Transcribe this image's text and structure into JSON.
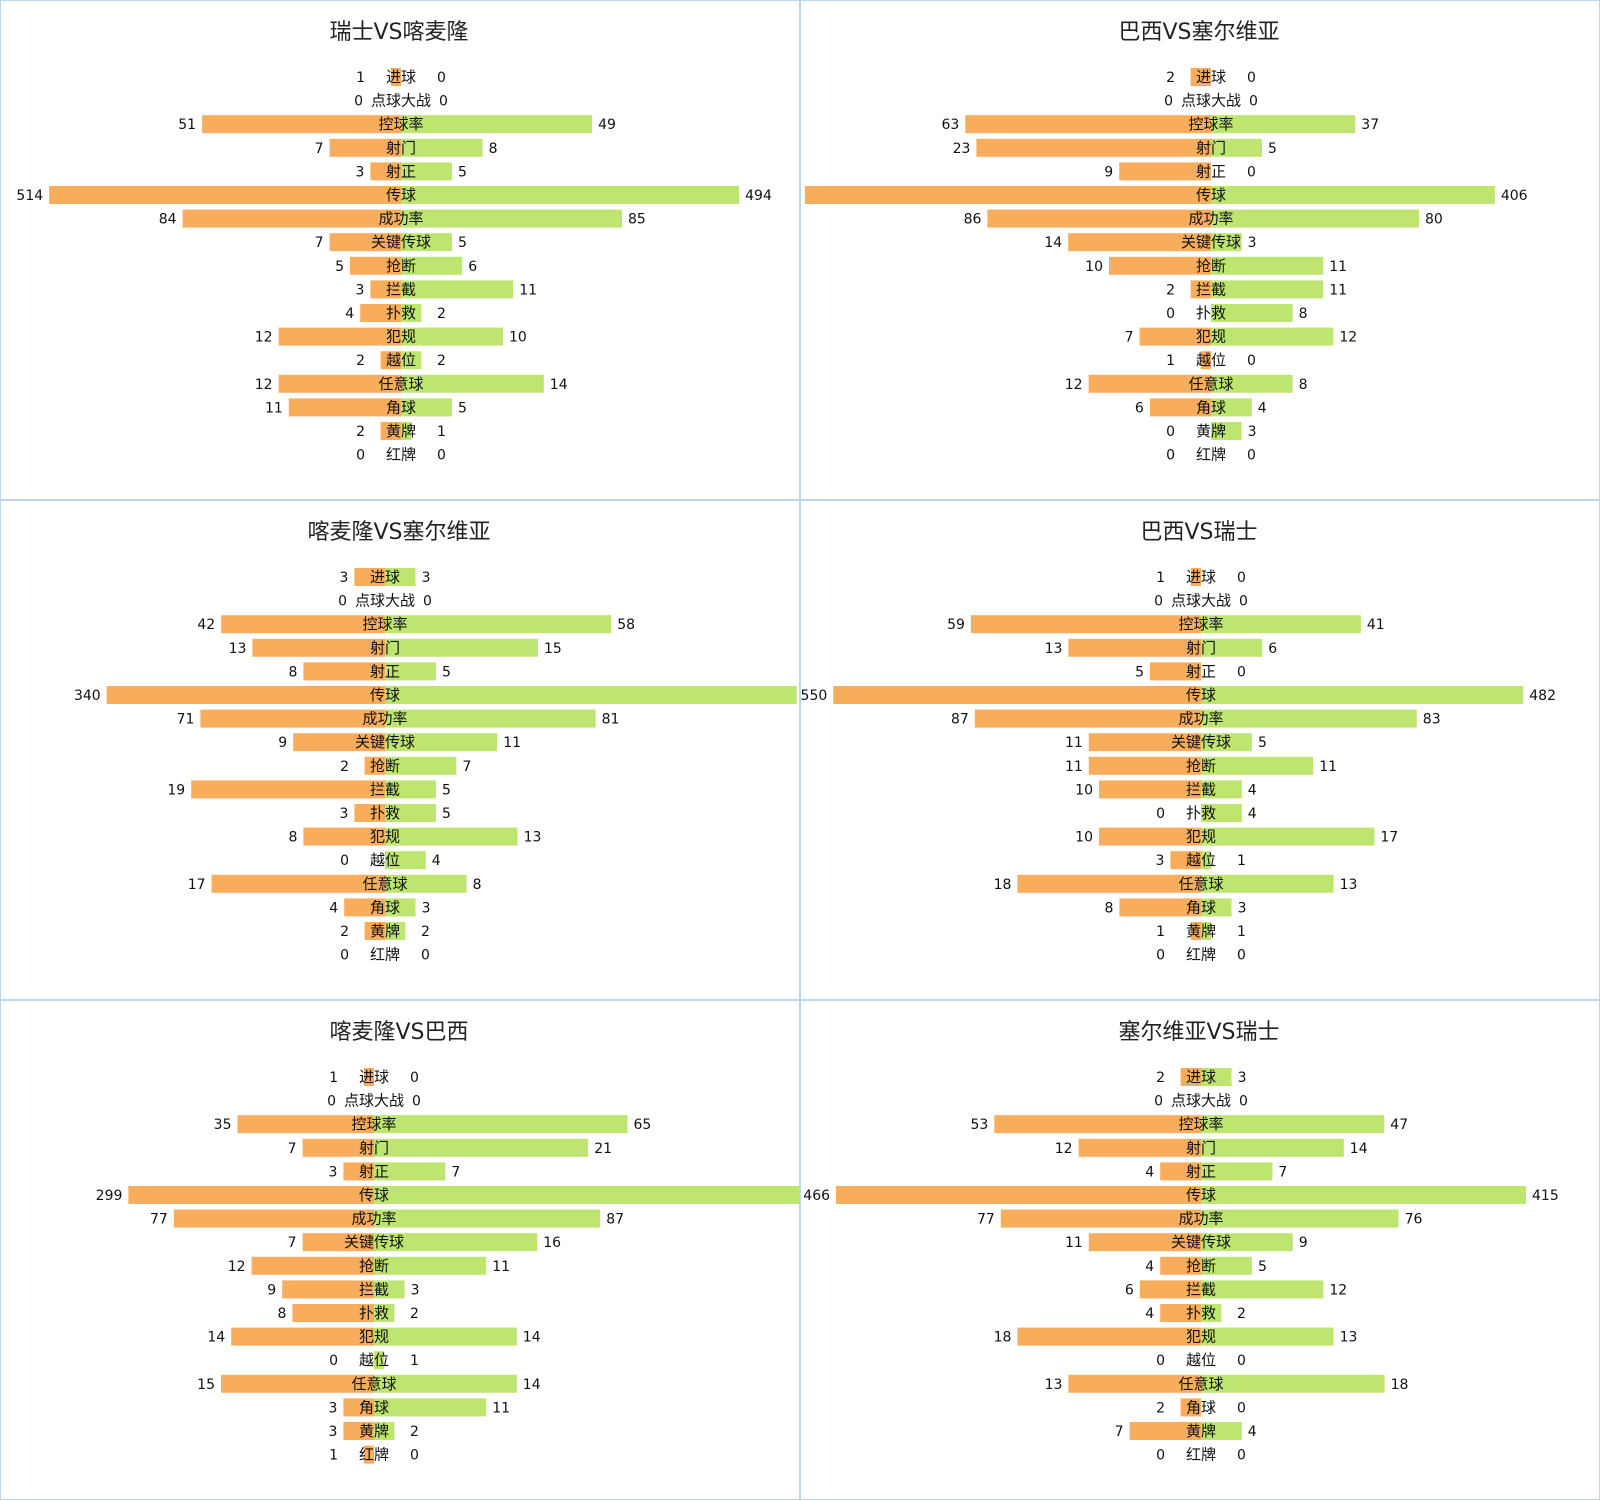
{
  "colors": {
    "left_bar": "#f8ad5c",
    "right_bar": "#bde56f",
    "border": "#bcd6ea"
  },
  "chart_data": [
    {
      "type": "bar",
      "title": "瑞士VS喀麦隆",
      "categories": [
        "进球",
        "点球大战",
        "控球率",
        "射门",
        "射正",
        "传球",
        "成功率",
        "关键传球",
        "抢断",
        "拦截",
        "扑救",
        "犯规",
        "越位",
        "任意球",
        "角球",
        "黄牌",
        "红牌"
      ],
      "series": [
        {
          "values": [
            1,
            0,
            51,
            7,
            3,
            514,
            84,
            7,
            5,
            3,
            4,
            12,
            2,
            12,
            11,
            2,
            0
          ]
        },
        {
          "values": [
            0,
            0,
            49,
            8,
            5,
            494,
            85,
            5,
            6,
            11,
            2,
            10,
            2,
            14,
            5,
            1,
            0
          ]
        }
      ]
    },
    {
      "type": "bar",
      "title": "巴西VS塞尔维亚",
      "categories": [
        "进球",
        "点球大战",
        "控球率",
        "射门",
        "射正",
        "传球",
        "成功率",
        "关键传球",
        "抢断",
        "拦截",
        "扑救",
        "犯规",
        "越位",
        "任意球",
        "角球",
        "黄牌",
        "红牌"
      ],
      "series": [
        {
          "values": [
            2,
            0,
            63,
            23,
            9,
            581,
            86,
            14,
            10,
            2,
            0,
            7,
            1,
            12,
            6,
            0,
            0
          ]
        },
        {
          "values": [
            0,
            0,
            37,
            5,
            0,
            406,
            80,
            3,
            11,
            11,
            8,
            12,
            0,
            8,
            4,
            3,
            0
          ]
        }
      ]
    },
    {
      "type": "bar",
      "title": "喀麦隆VS塞尔维亚",
      "categories": [
        "进球",
        "点球大战",
        "控球率",
        "射门",
        "射正",
        "传球",
        "成功率",
        "关键传球",
        "抢断",
        "拦截",
        "扑救",
        "犯规",
        "越位",
        "任意球",
        "角球",
        "黄牌",
        "红牌"
      ],
      "series": [
        {
          "values": [
            3,
            0,
            42,
            13,
            8,
            340,
            71,
            9,
            2,
            19,
            3,
            8,
            0,
            17,
            4,
            2,
            0
          ]
        },
        {
          "values": [
            3,
            0,
            58,
            15,
            5,
            503,
            81,
            11,
            7,
            5,
            5,
            13,
            4,
            8,
            3,
            2,
            0
          ]
        }
      ]
    },
    {
      "type": "bar",
      "title": "巴西VS瑞士",
      "categories": [
        "进球",
        "点球大战",
        "控球率",
        "射门",
        "射正",
        "传球",
        "成功率",
        "关键传球",
        "抢断",
        "拦截",
        "扑救",
        "犯规",
        "越位",
        "任意球",
        "角球",
        "黄牌",
        "红牌"
      ],
      "series": [
        {
          "values": [
            1,
            0,
            59,
            13,
            5,
            550,
            87,
            11,
            11,
            10,
            0,
            10,
            3,
            18,
            8,
            1,
            0
          ]
        },
        {
          "values": [
            0,
            0,
            41,
            6,
            0,
            482,
            83,
            5,
            11,
            4,
            4,
            17,
            1,
            13,
            3,
            1,
            0
          ]
        }
      ]
    },
    {
      "type": "bar",
      "title": "喀麦隆VS巴西",
      "categories": [
        "进球",
        "点球大战",
        "控球率",
        "射门",
        "射正",
        "传球",
        "成功率",
        "关键传球",
        "抢断",
        "拦截",
        "扑救",
        "犯规",
        "越位",
        "任意球",
        "角球",
        "黄牌",
        "红牌"
      ],
      "series": [
        {
          "values": [
            1,
            0,
            35,
            7,
            3,
            299,
            77,
            7,
            12,
            9,
            8,
            14,
            0,
            15,
            3,
            3,
            1
          ]
        },
        {
          "values": [
            0,
            0,
            65,
            21,
            7,
            541,
            87,
            16,
            11,
            3,
            2,
            14,
            1,
            14,
            11,
            2,
            0
          ]
        }
      ]
    },
    {
      "type": "bar",
      "title": "塞尔维亚VS瑞士",
      "categories": [
        "进球",
        "点球大战",
        "控球率",
        "射门",
        "射正",
        "传球",
        "成功率",
        "关键传球",
        "抢断",
        "拦截",
        "扑救",
        "犯规",
        "越位",
        "任意球",
        "角球",
        "黄牌",
        "红牌"
      ],
      "series": [
        {
          "values": [
            2,
            0,
            53,
            12,
            4,
            466,
            77,
            11,
            4,
            6,
            4,
            18,
            0,
            13,
            2,
            7,
            0
          ]
        },
        {
          "values": [
            3,
            0,
            47,
            14,
            7,
            415,
            76,
            9,
            5,
            12,
            2,
            13,
            0,
            18,
            0,
            4,
            0
          ]
        }
      ]
    }
  ]
}
